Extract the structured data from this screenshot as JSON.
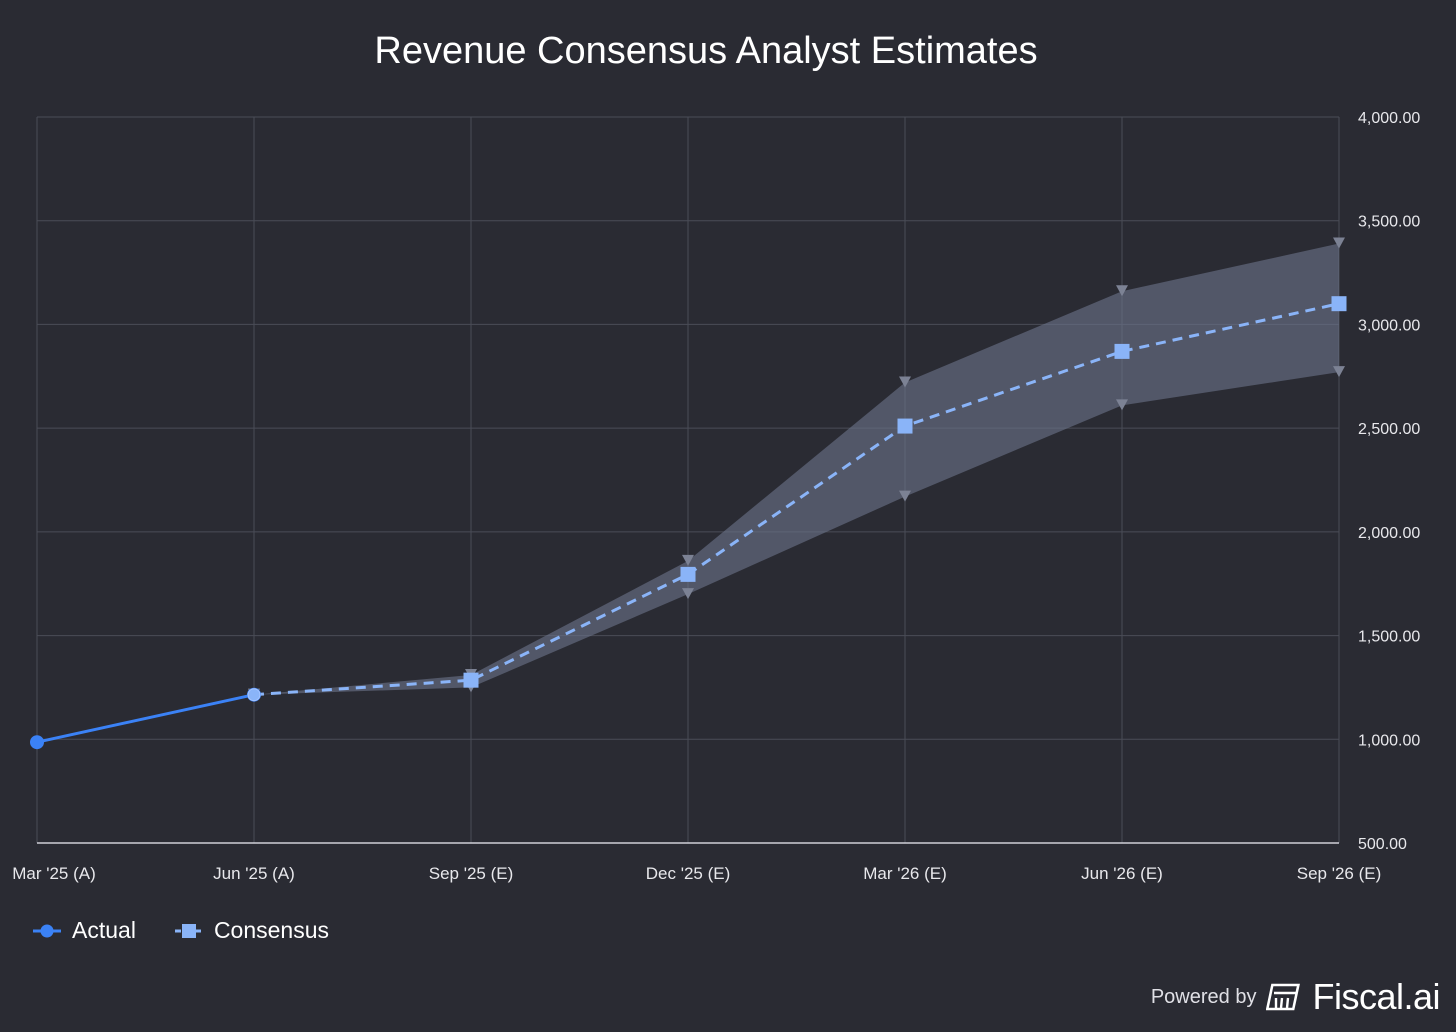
{
  "chart_data": {
    "type": "line",
    "title": "Revenue Consensus Analyst Estimates",
    "categories": [
      "Mar '25 (A)",
      "Jun '25 (A)",
      "Sep '25 (E)",
      "Dec '25 (E)",
      "Mar '26 (E)",
      "Jun '26 (E)",
      "Sep '26 (E)"
    ],
    "ylim": [
      500,
      4000
    ],
    "yticks": [
      500,
      1000,
      1500,
      2000,
      2500,
      3000,
      3500,
      4000
    ],
    "ytick_labels": [
      "500.00",
      "1,000.00",
      "1,500.00",
      "2,000.00",
      "2,500.00",
      "3,000.00",
      "3,500.00",
      "4,000.00"
    ],
    "y_axis_side": "right",
    "grid": true,
    "legend_position": "bottom-left",
    "series": [
      {
        "name": "Actual",
        "color": "#3b82f6",
        "marker": "circle",
        "line_style": "solid",
        "values": [
          986,
          1215,
          null,
          null,
          null,
          null,
          null
        ]
      },
      {
        "name": "Consensus",
        "color": "#8ab4f8",
        "marker": "square",
        "line_style": "dashed",
        "values": [
          null,
          1215,
          1285,
          1795,
          2510,
          2870,
          3100
        ]
      }
    ],
    "estimate_range": {
      "color": "#6b7289",
      "high": [
        null,
        1215,
        1310,
        1860,
        2720,
        3160,
        3390
      ],
      "low": [
        null,
        1215,
        1250,
        1700,
        2170,
        2610,
        2770
      ]
    }
  },
  "legend": {
    "actual_label": "Actual",
    "consensus_label": "Consensus"
  },
  "footer": {
    "powered_by": "Powered by",
    "brand": "Fiscal.ai"
  },
  "colors": {
    "background": "#2a2b33",
    "grid": "#4a4c57",
    "axis": "#d0d0d8"
  }
}
